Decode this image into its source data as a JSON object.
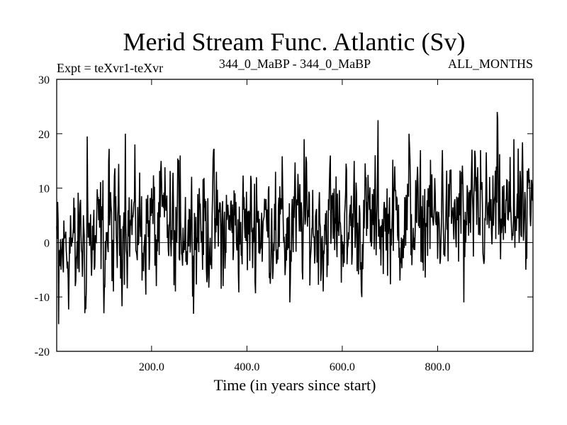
{
  "chart_data": {
    "type": "line",
    "title": "Merid Stream Func. Atlantic (Sv)",
    "subtitle_left": "Expt = teXvr1-teXvr",
    "subtitle_center": "344_0_MaBP - 344_0_MaBP",
    "subtitle_right": "ALL_MONTHS",
    "xlabel": "Time (in years since start)",
    "ylabel": "",
    "xlim": [
      1,
      1000
    ],
    "ylim": [
      -20,
      30
    ],
    "x_ticks": [
      200,
      400,
      600,
      800
    ],
    "x_tick_labels": [
      "200.0",
      "400.0",
      "600.0",
      "800.0"
    ],
    "y_ticks": [
      -20,
      -10,
      0,
      10,
      20,
      30
    ],
    "y_tick_labels": [
      "-20",
      "-10",
      "0",
      "10",
      "20",
      "30"
    ],
    "zero_line": true,
    "grid": false,
    "legend": "none",
    "line_color": "#000000",
    "series": [
      {
        "anchors": [
          [
            1,
            3
          ],
          [
            5,
            -15
          ],
          [
            10,
            -5
          ],
          [
            20,
            2
          ],
          [
            30,
            5
          ],
          [
            40,
            -8
          ],
          [
            50,
            7
          ],
          [
            60,
            -13
          ],
          [
            65,
            19.5
          ],
          [
            80,
            -5
          ],
          [
            90,
            8
          ],
          [
            100,
            -13
          ],
          [
            110,
            15
          ],
          [
            120,
            -9
          ],
          [
            130,
            7
          ],
          [
            140,
            3
          ],
          [
            145,
            20
          ],
          [
            160,
            5
          ],
          [
            180,
            -7
          ],
          [
            200,
            10
          ],
          [
            210,
            -8
          ],
          [
            220,
            15
          ],
          [
            240,
            0
          ],
          [
            250,
            -9
          ],
          [
            260,
            16
          ],
          [
            280,
            6
          ],
          [
            300,
            10
          ],
          [
            315,
            -5
          ],
          [
            330,
            17
          ],
          [
            350,
            -8
          ],
          [
            370,
            7
          ],
          [
            390,
            -4
          ],
          [
            400,
            3
          ],
          [
            420,
            12
          ],
          [
            440,
            8
          ],
          [
            450,
            -5
          ],
          [
            460,
            13
          ],
          [
            480,
            -6
          ],
          [
            490,
            -11
          ],
          [
            500,
            10
          ],
          [
            520,
            19
          ],
          [
            540,
            1
          ],
          [
            560,
            -9
          ],
          [
            575,
            16
          ],
          [
            590,
            9
          ],
          [
            610,
            -4
          ],
          [
            625,
            15
          ],
          [
            640,
            -9
          ],
          [
            650,
            12
          ],
          [
            670,
            5
          ],
          [
            675,
            22.5
          ],
          [
            690,
            2
          ],
          [
            710,
            14
          ],
          [
            730,
            -1
          ],
          [
            740,
            20
          ],
          [
            760,
            3
          ],
          [
            780,
            10
          ],
          [
            800,
            -3
          ],
          [
            810,
            17
          ],
          [
            830,
            5
          ],
          [
            850,
            13
          ],
          [
            855,
            -11
          ],
          [
            870,
            8
          ],
          [
            890,
            17
          ],
          [
            910,
            6
          ],
          [
            925,
            24
          ],
          [
            940,
            3
          ],
          [
            960,
            19
          ],
          [
            970,
            8
          ],
          [
            985,
            -5
          ],
          [
            990,
            13
          ],
          [
            995,
            3
          ],
          [
            1000,
            8
          ]
        ],
        "noise_amplitude": 5,
        "mean_trend": [
          [
            1,
            -2
          ],
          [
            150,
            3
          ],
          [
            500,
            3
          ],
          [
            1000,
            5
          ]
        ]
      }
    ]
  }
}
